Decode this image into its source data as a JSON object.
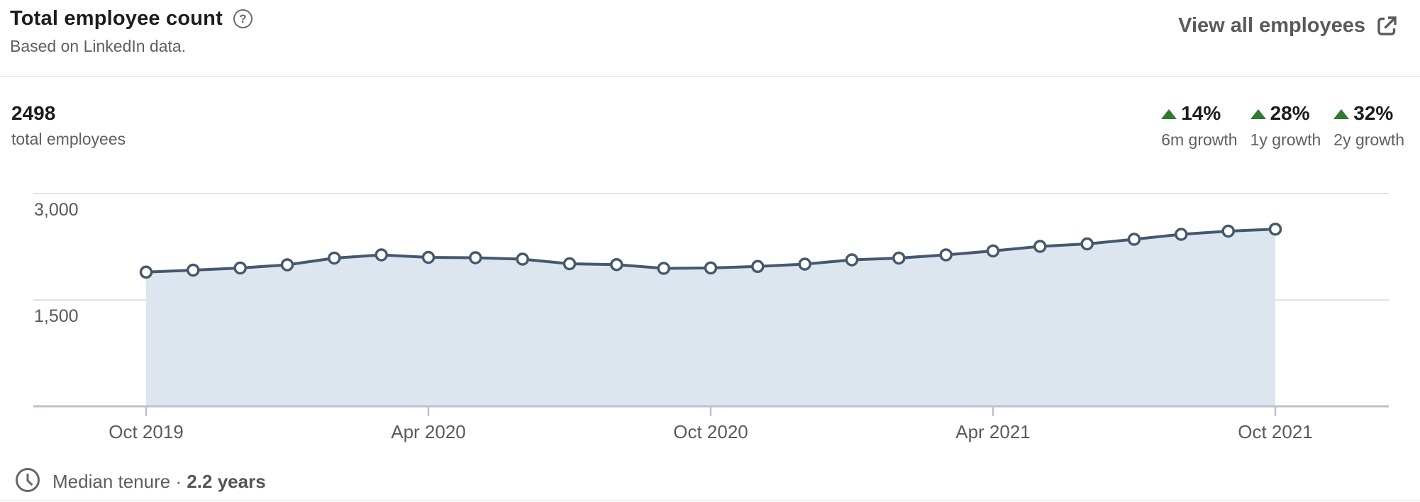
{
  "header": {
    "title": "Total employee count",
    "help_glyph": "?",
    "subtitle": "Based on LinkedIn data.",
    "view_all_label": "View all employees"
  },
  "stats": {
    "total_value": "2498",
    "total_label": "total employees",
    "growth": [
      {
        "value": "14%",
        "label": "6m growth"
      },
      {
        "value": "28%",
        "label": "1y growth"
      },
      {
        "value": "32%",
        "label": "2y growth"
      }
    ]
  },
  "footer": {
    "label": "Median tenure ·",
    "value": "2.2 years"
  },
  "chart_data": {
    "type": "area",
    "title": "Total employee count",
    "x": [
      "Oct 2019",
      "Nov 2019",
      "Dec 2019",
      "Jan 2020",
      "Feb 2020",
      "Mar 2020",
      "Apr 2020",
      "May 2020",
      "Jun 2020",
      "Jul 2020",
      "Aug 2020",
      "Sep 2020",
      "Oct 2020",
      "Nov 2020",
      "Dec 2020",
      "Jan 2021",
      "Feb 2021",
      "Mar 2021",
      "Apr 2021",
      "May 2021",
      "Jun 2021",
      "Jul 2021",
      "Aug 2021",
      "Sep 2021",
      "Oct 2021"
    ],
    "values": [
      1892,
      1920,
      1950,
      1995,
      2090,
      2135,
      2100,
      2095,
      2075,
      2010,
      1998,
      1945,
      1951,
      1972,
      2005,
      2065,
      2090,
      2135,
      2191,
      2255,
      2290,
      2355,
      2425,
      2470,
      2498
    ],
    "x_tick_labels": [
      "Oct 2019",
      "Apr 2020",
      "Oct 2020",
      "Apr 2021",
      "Oct 2021"
    ],
    "y_ticks": [
      {
        "value": 1500,
        "label": "1,500"
      },
      {
        "value": 3000,
        "label": "3,000"
      }
    ],
    "ylim": [
      0,
      3000
    ],
    "grid": "horizontal",
    "legend": "none",
    "marker": "circle",
    "colors": {
      "line": "#44596e",
      "marker_fill": "#ffffff",
      "area_fill": "#dde5ef",
      "gridline": "#e2e2e2",
      "axis": "#bac3d0",
      "tick_text": "#5a5a5a",
      "growth_green": "#2e7b31"
    }
  }
}
